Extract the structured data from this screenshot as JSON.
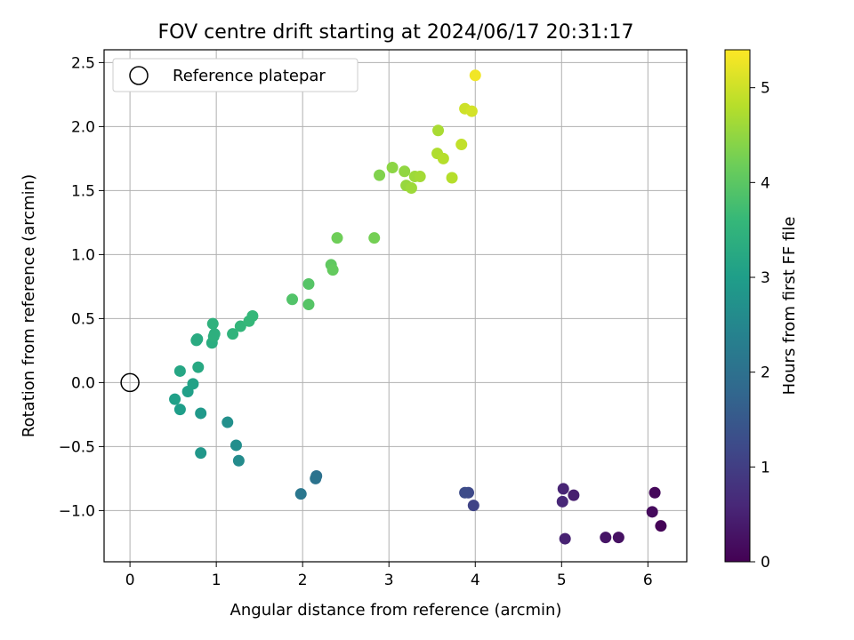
{
  "chart_data": {
    "type": "scatter",
    "title": "FOV centre drift starting at 2024/06/17 20:31:17",
    "xlabel": "Angular distance from reference (arcmin)",
    "ylabel": "Rotation from reference (arcmin)",
    "xlim": [
      -0.3,
      6.45
    ],
    "ylim": [
      -1.4,
      2.6
    ],
    "xticks": [
      0,
      1,
      2,
      3,
      4,
      5,
      6
    ],
    "xtick_labels": [
      "0",
      "1",
      "2",
      "3",
      "4",
      "5",
      "6"
    ],
    "yticks": [
      -1.0,
      -0.5,
      0.0,
      0.5,
      1.0,
      1.5,
      2.0,
      2.5
    ],
    "ytick_labels": [
      "−1.0",
      "−0.5",
      "0.0",
      "0.5",
      "1.0",
      "1.5",
      "2.0",
      "2.5"
    ],
    "grid": true,
    "legend": {
      "placement": "top-left",
      "entries": [
        "Reference platepar"
      ]
    },
    "reference_point": {
      "x": 0,
      "y": 0
    },
    "colorbar": {
      "label": "Hours from first FF file",
      "range": [
        0,
        5.4
      ],
      "ticks": [
        0,
        1,
        2,
        3,
        4,
        5
      ],
      "tick_labels": [
        "0",
        "1",
        "2",
        "3",
        "4",
        "5"
      ],
      "colormap": [
        "#440154",
        "#482878",
        "#3e4989",
        "#31688e",
        "#26828e",
        "#1f9e89",
        "#35b779",
        "#6ece58",
        "#b5de2b",
        "#fde725"
      ]
    },
    "points": [
      {
        "x": 6.15,
        "y": -1.12,
        "c": 0.05
      },
      {
        "x": 6.08,
        "y": -0.86,
        "c": 0.1
      },
      {
        "x": 6.05,
        "y": -1.01,
        "c": 0.15
      },
      {
        "x": 5.66,
        "y": -1.21,
        "c": 0.25
      },
      {
        "x": 5.51,
        "y": -1.21,
        "c": 0.3
      },
      {
        "x": 5.14,
        "y": -0.88,
        "c": 0.45
      },
      {
        "x": 5.04,
        "y": -1.22,
        "c": 0.5
      },
      {
        "x": 5.02,
        "y": -0.83,
        "c": 0.55
      },
      {
        "x": 5.01,
        "y": -0.93,
        "c": 0.6
      },
      {
        "x": 3.98,
        "y": -0.96,
        "c": 1.1
      },
      {
        "x": 3.92,
        "y": -0.86,
        "c": 1.2
      },
      {
        "x": 3.88,
        "y": -0.86,
        "c": 1.25
      },
      {
        "x": 2.16,
        "y": -0.73,
        "c": 2.0
      },
      {
        "x": 2.15,
        "y": -0.75,
        "c": 2.05
      },
      {
        "x": 1.98,
        "y": -0.87,
        "c": 2.15
      },
      {
        "x": 1.26,
        "y": -0.61,
        "c": 2.6
      },
      {
        "x": 1.23,
        "y": -0.49,
        "c": 2.65
      },
      {
        "x": 1.13,
        "y": -0.31,
        "c": 2.7
      },
      {
        "x": 0.82,
        "y": -0.55,
        "c": 2.85
      },
      {
        "x": 0.82,
        "y": -0.24,
        "c": 2.9
      },
      {
        "x": 0.58,
        "y": -0.21,
        "c": 3.0
      },
      {
        "x": 0.52,
        "y": -0.13,
        "c": 3.05
      },
      {
        "x": 0.67,
        "y": -0.07,
        "c": 3.05
      },
      {
        "x": 0.73,
        "y": -0.01,
        "c": 3.1
      },
      {
        "x": 0.58,
        "y": 0.09,
        "c": 3.2
      },
      {
        "x": 0.79,
        "y": 0.12,
        "c": 3.25
      },
      {
        "x": 0.77,
        "y": 0.33,
        "c": 3.3
      },
      {
        "x": 0.78,
        "y": 0.34,
        "c": 3.3
      },
      {
        "x": 0.95,
        "y": 0.31,
        "c": 3.35
      },
      {
        "x": 0.98,
        "y": 0.38,
        "c": 3.4
      },
      {
        "x": 0.97,
        "y": 0.36,
        "c": 3.4
      },
      {
        "x": 0.96,
        "y": 0.46,
        "c": 3.45
      },
      {
        "x": 1.19,
        "y": 0.38,
        "c": 3.5
      },
      {
        "x": 1.28,
        "y": 0.44,
        "c": 3.55
      },
      {
        "x": 1.38,
        "y": 0.48,
        "c": 3.6
      },
      {
        "x": 1.42,
        "y": 0.52,
        "c": 3.6
      },
      {
        "x": 1.88,
        "y": 0.65,
        "c": 3.9
      },
      {
        "x": 2.07,
        "y": 0.77,
        "c": 3.95
      },
      {
        "x": 2.07,
        "y": 0.61,
        "c": 3.95
      },
      {
        "x": 2.33,
        "y": 0.92,
        "c": 4.05
      },
      {
        "x": 2.35,
        "y": 0.88,
        "c": 4.1
      },
      {
        "x": 2.4,
        "y": 1.13,
        "c": 4.2
      },
      {
        "x": 2.83,
        "y": 1.13,
        "c": 4.25
      },
      {
        "x": 2.89,
        "y": 1.62,
        "c": 4.35
      },
      {
        "x": 3.04,
        "y": 1.68,
        "c": 4.45
      },
      {
        "x": 3.18,
        "y": 1.65,
        "c": 4.5
      },
      {
        "x": 3.2,
        "y": 1.54,
        "c": 4.55
      },
      {
        "x": 3.26,
        "y": 1.52,
        "c": 4.6
      },
      {
        "x": 3.3,
        "y": 1.61,
        "c": 4.6
      },
      {
        "x": 3.36,
        "y": 1.61,
        "c": 4.65
      },
      {
        "x": 3.57,
        "y": 1.97,
        "c": 4.7
      },
      {
        "x": 3.56,
        "y": 1.79,
        "c": 4.75
      },
      {
        "x": 3.63,
        "y": 1.75,
        "c": 4.8
      },
      {
        "x": 3.73,
        "y": 1.6,
        "c": 4.8
      },
      {
        "x": 3.84,
        "y": 1.86,
        "c": 4.9
      },
      {
        "x": 3.88,
        "y": 2.14,
        "c": 5.0
      },
      {
        "x": 3.96,
        "y": 2.12,
        "c": 5.05
      },
      {
        "x": 4.0,
        "y": 2.4,
        "c": 5.3
      }
    ]
  }
}
